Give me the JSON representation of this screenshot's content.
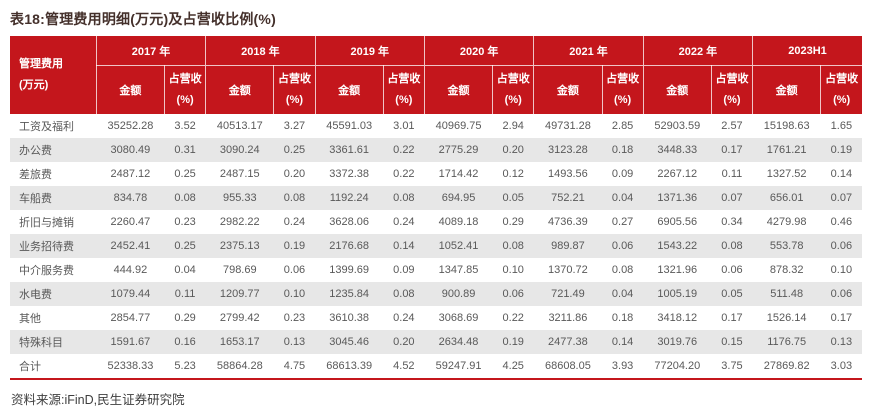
{
  "title": "表18:管理费用明细(万元)及占营收比例(%)",
  "footer": {
    "text": "资料来源:iFinD,民生证券研究院"
  },
  "colors": {
    "header_bg": "#c4161c",
    "alt_row_bg": "#e7e7e7",
    "body_text": "#595959",
    "title_text": "#44302b",
    "bottom_rule": "#c4161c"
  },
  "chart_data": {
    "type": "table",
    "row_header": "管理费用\n(万元)",
    "col_groups": [
      "2017 年",
      "2018 年",
      "2019 年",
      "2020 年",
      "2021 年",
      "2022 年",
      "2023H1"
    ],
    "sub_columns": [
      "金额",
      "占营收\n(%)"
    ],
    "rows": [
      {
        "label": "工资及福利",
        "values": [
          "35252.28",
          "3.52",
          "40513.17",
          "3.27",
          "45591.03",
          "3.01",
          "40969.75",
          "2.94",
          "49731.28",
          "2.85",
          "52903.59",
          "2.57",
          "15198.63",
          "1.65"
        ]
      },
      {
        "label": "办公费",
        "values": [
          "3080.49",
          "0.31",
          "3090.24",
          "0.25",
          "3361.61",
          "0.22",
          "2775.29",
          "0.20",
          "3123.28",
          "0.18",
          "3448.33",
          "0.17",
          "1761.21",
          "0.19"
        ]
      },
      {
        "label": "差旅费",
        "values": [
          "2487.12",
          "0.25",
          "2487.15",
          "0.20",
          "3372.38",
          "0.22",
          "1714.42",
          "0.12",
          "1493.56",
          "0.09",
          "2267.12",
          "0.11",
          "1327.52",
          "0.14"
        ]
      },
      {
        "label": "车船费",
        "values": [
          "834.78",
          "0.08",
          "955.33",
          "0.08",
          "1192.24",
          "0.08",
          "694.95",
          "0.05",
          "752.21",
          "0.04",
          "1371.36",
          "0.07",
          "656.01",
          "0.07"
        ]
      },
      {
        "label": "折旧与摊销",
        "values": [
          "2260.47",
          "0.23",
          "2982.22",
          "0.24",
          "3628.06",
          "0.24",
          "4089.18",
          "0.29",
          "4736.39",
          "0.27",
          "6905.56",
          "0.34",
          "4279.98",
          "0.46"
        ]
      },
      {
        "label": "业务招待费",
        "values": [
          "2452.41",
          "0.25",
          "2375.13",
          "0.19",
          "2176.68",
          "0.14",
          "1052.41",
          "0.08",
          "989.87",
          "0.06",
          "1543.22",
          "0.08",
          "553.78",
          "0.06"
        ]
      },
      {
        "label": "中介服务费",
        "values": [
          "444.92",
          "0.04",
          "798.69",
          "0.06",
          "1399.69",
          "0.09",
          "1347.85",
          "0.10",
          "1370.72",
          "0.08",
          "1321.96",
          "0.06",
          "878.32",
          "0.10"
        ]
      },
      {
        "label": "水电费",
        "values": [
          "1079.44",
          "0.11",
          "1209.77",
          "0.10",
          "1235.84",
          "0.08",
          "900.89",
          "0.06",
          "721.49",
          "0.04",
          "1005.19",
          "0.05",
          "511.48",
          "0.06"
        ]
      },
      {
        "label": "其他",
        "values": [
          "2854.77",
          "0.29",
          "2799.42",
          "0.23",
          "3610.38",
          "0.24",
          "3068.69",
          "0.22",
          "3211.86",
          "0.18",
          "3418.12",
          "0.17",
          "1526.14",
          "0.17"
        ]
      },
      {
        "label": "特殊科目",
        "values": [
          "1591.67",
          "0.16",
          "1653.17",
          "0.13",
          "3045.46",
          "0.20",
          "2634.48",
          "0.19",
          "2477.38",
          "0.14",
          "3019.76",
          "0.15",
          "1176.75",
          "0.13"
        ]
      },
      {
        "label": "合计",
        "values": [
          "52338.33",
          "5.23",
          "58864.28",
          "4.75",
          "68613.39",
          "4.52",
          "59247.91",
          "4.25",
          "68608.05",
          "3.93",
          "77204.20",
          "3.75",
          "27869.82",
          "3.03"
        ]
      }
    ]
  }
}
